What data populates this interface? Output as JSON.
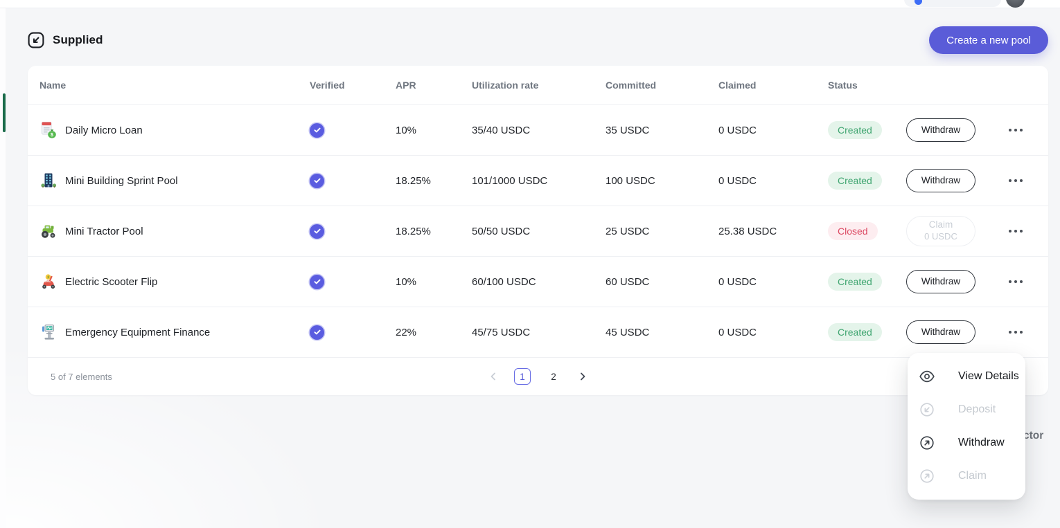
{
  "colors": {
    "accent": "#5a5cd8",
    "verified_badge": "#5a5ce0",
    "created_text": "#3fa570",
    "created_bg": "#e4f4ea",
    "closed_text": "#dc4a63",
    "closed_bg": "#fdedf0"
  },
  "section": {
    "title": "Supplied",
    "title_icon": "arrow-down-left-box-icon",
    "create_button": "Create a new pool"
  },
  "table": {
    "columns": [
      "Name",
      "Verified",
      "APR",
      "Utilization rate",
      "Committed",
      "Claimed",
      "Status"
    ],
    "rows": [
      {
        "icon": "loan-document-icon",
        "name": "Daily Micro Loan",
        "verified": true,
        "apr": "10%",
        "utilization_rate": "35/40 USDC",
        "committed": "35 USDC",
        "claimed": "0 USDC",
        "status": "Created",
        "action_label": "Withdraw",
        "action_sublabel": "",
        "action_enabled": true
      },
      {
        "icon": "building-icon",
        "name": "Mini Building Sprint Pool",
        "verified": true,
        "apr": "18.25%",
        "utilization_rate": "101/1000 USDC",
        "committed": "100 USDC",
        "claimed": "0 USDC",
        "status": "Created",
        "action_label": "Withdraw",
        "action_sublabel": "",
        "action_enabled": true
      },
      {
        "icon": "tractor-icon",
        "name": "Mini Tractor Pool",
        "verified": true,
        "apr": "18.25%",
        "utilization_rate": "50/50 USDC",
        "committed": "25 USDC",
        "claimed": "25.38 USDC",
        "status": "Closed",
        "action_label": "Claim",
        "action_sublabel": "0 USDC",
        "action_enabled": false
      },
      {
        "icon": "scooter-icon",
        "name": "Electric Scooter Flip",
        "verified": true,
        "apr": "10%",
        "utilization_rate": "60/100 USDC",
        "committed": "60 USDC",
        "claimed": "0 USDC",
        "status": "Created",
        "action_label": "Withdraw",
        "action_sublabel": "",
        "action_enabled": true
      },
      {
        "icon": "medical-equipment-icon",
        "name": "Emergency Equipment Finance",
        "verified": true,
        "apr": "22%",
        "utilization_rate": "45/75 USDC",
        "committed": "45 USDC",
        "claimed": "0 USDC",
        "status": "Created",
        "action_label": "Withdraw",
        "action_sublabel": "",
        "action_enabled": true
      }
    ],
    "footer": {
      "count_text": "5 of 7 elements",
      "pages": [
        "1",
        "2"
      ],
      "current_page": "1"
    }
  },
  "context_menu": {
    "items": [
      {
        "label": "View Details",
        "icon": "eye-icon",
        "enabled": true
      },
      {
        "label": "Deposit",
        "icon": "deposit-arrow-icon",
        "enabled": false
      },
      {
        "label": "Withdraw",
        "icon": "withdraw-arrow-icon",
        "enabled": true
      },
      {
        "label": "Claim",
        "icon": "claim-arrow-icon",
        "enabled": false
      }
    ]
  },
  "background_text": "ctor"
}
